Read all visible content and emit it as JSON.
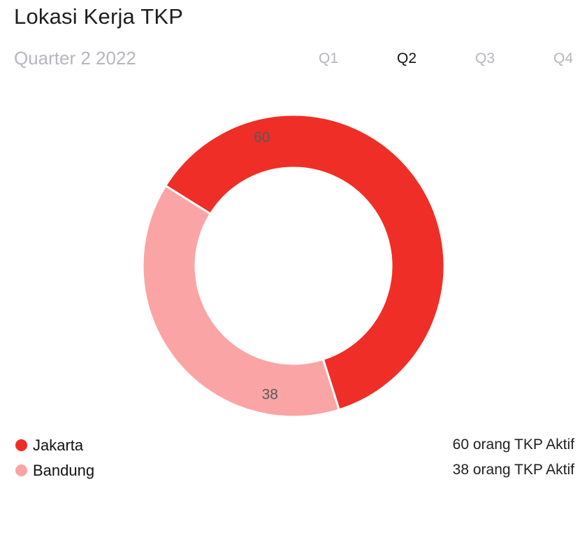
{
  "header": {
    "title": "Lokasi Kerja TKP",
    "period": "Quarter 2 2022"
  },
  "quarters": {
    "tabs": [
      "Q1",
      "Q2",
      "Q3",
      "Q4"
    ],
    "active": "Q2"
  },
  "chart_data": {
    "type": "pie",
    "style": "donut",
    "categories": [
      "Jakarta",
      "Bandung"
    ],
    "values": [
      60,
      38
    ],
    "colors": [
      "#ef2e27",
      "#fba4a6"
    ],
    "data_labels": [
      "60",
      "38"
    ],
    "legend": "bottom-left"
  },
  "legend": {
    "items": [
      {
        "label": "Jakarta",
        "value_text": "60 orang TKP Aktif",
        "color": "#ef2e27"
      },
      {
        "label": "Bandung",
        "value_text": "38 orang TKP Aktif",
        "color": "#fba4a6"
      }
    ]
  }
}
